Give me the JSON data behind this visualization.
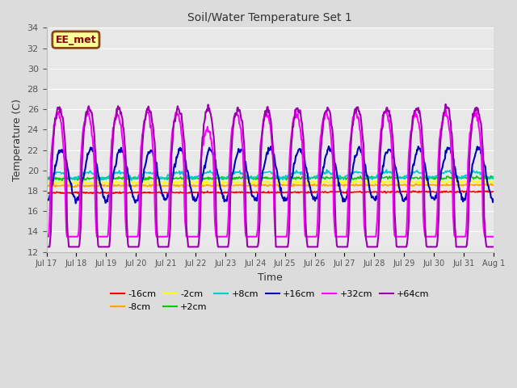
{
  "title": "Soil/Water Temperature Set 1",
  "xlabel": "Time",
  "ylabel": "Temperature (C)",
  "ylim": [
    12,
    34
  ],
  "yticks": [
    12,
    14,
    16,
    18,
    20,
    22,
    24,
    26,
    28,
    30,
    32,
    34
  ],
  "annotation_text": "EE_met",
  "bg_color": "#DCDCDC",
  "plot_bg_color": "#E8E8E8",
  "series": [
    {
      "label": "-16cm",
      "color": "#FF0000",
      "lw": 1.2
    },
    {
      "label": "-8cm",
      "color": "#FFA500",
      "lw": 1.2
    },
    {
      "label": "-2cm",
      "color": "#FFFF00",
      "lw": 1.2
    },
    {
      "label": "+2cm",
      "color": "#00CC00",
      "lw": 1.2
    },
    {
      "label": "+8cm",
      "color": "#00CCCC",
      "lw": 1.2
    },
    {
      "label": "+16cm",
      "color": "#0000BB",
      "lw": 1.5
    },
    {
      "label": "+32cm",
      "color": "#FF00FF",
      "lw": 1.5
    },
    {
      "label": "+64cm",
      "color": "#9900AA",
      "lw": 1.5
    }
  ],
  "grid_color": "#FFFFFF",
  "num_days": 15,
  "num_points_per_day": 48
}
